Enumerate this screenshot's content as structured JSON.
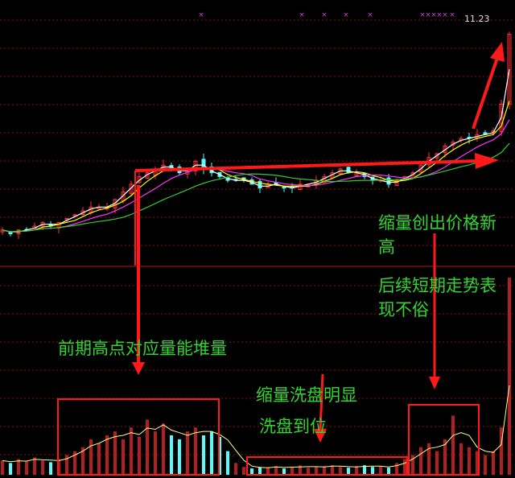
{
  "chart_data": {
    "type": "candlestick",
    "last_price_label": "11.23",
    "ylim": [
      5.8,
      11.6
    ],
    "closes": [
      6.1,
      6.0,
      6.1,
      6.1,
      6.2,
      6.3,
      6.2,
      6.3,
      6.4,
      6.5,
      6.6,
      6.7,
      6.7,
      6.7,
      6.9,
      7.1,
      7.3,
      7.5,
      7.6,
      7.7,
      7.8,
      7.7,
      7.6,
      7.7,
      7.9,
      7.7,
      7.6,
      7.5,
      7.4,
      7.4,
      7.4,
      7.3,
      7.2,
      7.3,
      7.3,
      7.2,
      7.2,
      7.3,
      7.3,
      7.4,
      7.5,
      7.6,
      7.7,
      7.6,
      7.6,
      7.5,
      7.4,
      7.4,
      7.3,
      7.4,
      7.5,
      7.6,
      7.8,
      8.0,
      8.1,
      8.3,
      8.4,
      8.5,
      8.5,
      8.6,
      8.6,
      8.7,
      9.4,
      11.23
    ],
    "volume": [
      18,
      15,
      20,
      17,
      22,
      18,
      16,
      20,
      25,
      30,
      35,
      45,
      40,
      50,
      55,
      45,
      60,
      48,
      70,
      55,
      65,
      50,
      45,
      55,
      60,
      50,
      55,
      48,
      30,
      15,
      10,
      8,
      10,
      9,
      11,
      8,
      10,
      12,
      9,
      10,
      11,
      12,
      10,
      9,
      11,
      12,
      10,
      11,
      9,
      15,
      20,
      25,
      35,
      40,
      30,
      45,
      75,
      40,
      35,
      30,
      25,
      30,
      60,
      250
    ],
    "moving_averages": [
      {
        "period": 5,
        "color": "#ffffff"
      },
      {
        "period": 10,
        "color": "#ffff00"
      },
      {
        "period": 20,
        "color": "#ff33ff"
      },
      {
        "period": 40,
        "color": "#33cc33"
      }
    ],
    "up_color": "#ff3232",
    "down_color": "#54fcfc"
  },
  "annotations": {
    "new_high_line1": "缩量创出价格新",
    "new_high_line2": "高",
    "follow_line1": "后续短期走势表",
    "follow_line2": "现不俗",
    "prior_high": "前期高点对应量能堆量",
    "wash_obvious": "缩量洗盘明显",
    "wash_done": "洗盘到位",
    "annotation_color": "#2fd62f",
    "arrow_color": "#ff1a1a"
  }
}
